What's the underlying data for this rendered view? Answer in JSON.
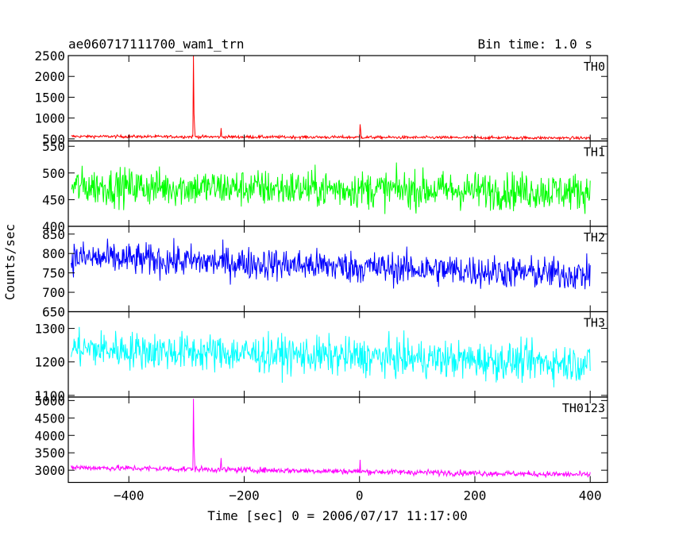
{
  "header": {
    "title": "ae060717111700_wam1_trn",
    "bin_time": "Bin time: 1.0 s"
  },
  "chart_data": {
    "type": "line",
    "xlabel": "Time [sec] 0 = 2006/07/17 11:17:00",
    "ylabel": "Counts/sec",
    "xlim": [
      -505,
      430
    ],
    "xticks": [
      -400,
      -200,
      0,
      200,
      400
    ],
    "xtick_labels": [
      "−400",
      "−200",
      "0",
      "200",
      "400"
    ],
    "x_start": -500,
    "x_end": 400,
    "bin_seconds": 1.0,
    "panels": [
      {
        "name": "TH0",
        "color": "#ff0000",
        "ylim": [
          450,
          2500
        ],
        "yticks": [
          500,
          1000,
          1500,
          2000,
          2500
        ],
        "ytick_labels": [
          "500",
          "1000",
          "1500",
          "2000",
          "2500"
        ],
        "baseline_start": 560,
        "baseline_end": 520,
        "noise": 25,
        "spikes": [
          {
            "x": -288,
            "y": 2500
          },
          {
            "x": -287,
            "y": 1100
          },
          {
            "x": -286,
            "y": 780
          },
          {
            "x": -240,
            "y": 760
          },
          {
            "x": 1,
            "y": 850
          },
          {
            "x": 2,
            "y": 700
          }
        ]
      },
      {
        "name": "TH1",
        "color": "#00ff00",
        "ylim": [
          400,
          560
        ],
        "yticks": [
          400,
          450,
          500,
          550
        ],
        "ytick_labels": [
          "400",
          "450",
          "500",
          "550"
        ],
        "baseline_start": 475,
        "baseline_end": 465,
        "noise": 25,
        "spikes": []
      },
      {
        "name": "TH2",
        "color": "#0000ff",
        "ylim": [
          650,
          870
        ],
        "yticks": [
          650,
          700,
          750,
          800,
          850
        ],
        "ytick_labels": [
          "650",
          "700",
          "750",
          "800",
          "850"
        ],
        "baseline_start": 790,
        "baseline_end": 745,
        "noise": 30,
        "spikes": []
      },
      {
        "name": "TH3",
        "color": "#00ffff",
        "ylim": [
          1095,
          1350
        ],
        "yticks": [
          1100,
          1200,
          1300
        ],
        "ytick_labels": [
          "1100",
          "1200",
          "1300"
        ],
        "baseline_start": 1240,
        "baseline_end": 1195,
        "noise": 40,
        "spikes": []
      },
      {
        "name": "TH0123",
        "color": "#ff00ff",
        "ylim": [
          2650,
          5100
        ],
        "yticks": [
          3000,
          3500,
          4000,
          4500,
          5000
        ],
        "ytick_labels": [
          "3000",
          "3500",
          "4000",
          "4500",
          "5000"
        ],
        "baseline_start": 3080,
        "baseline_end": 2870,
        "noise": 60,
        "spikes": [
          {
            "x": -288,
            "y": 5050
          },
          {
            "x": -287,
            "y": 3700
          },
          {
            "x": -286,
            "y": 3300
          },
          {
            "x": -240,
            "y": 3350
          },
          {
            "x": 1,
            "y": 3300
          }
        ]
      }
    ]
  }
}
